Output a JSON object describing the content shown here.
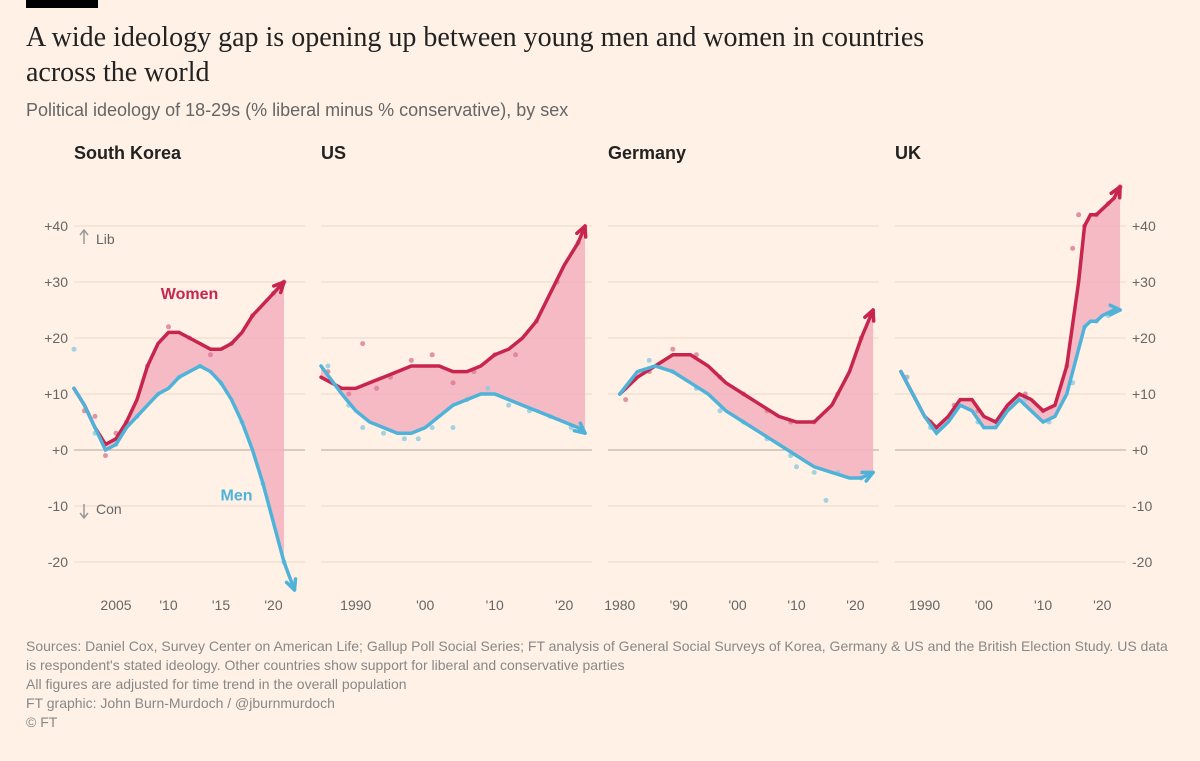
{
  "layout": {
    "background_color": "#fff1e5",
    "accent_bar_color": "#000000",
    "title_fontsize": 28,
    "subtitle_fontsize": 18,
    "chart_title_fontsize": 18,
    "axis_fontsize": 14,
    "footer_fontsize": 14
  },
  "title": "A wide ideology gap is opening up between young men and women in countries across the world",
  "subtitle": "Political ideology of 18-29s (% liberal minus % conservative), by sex",
  "series_labels": {
    "women": "Women",
    "men": "Men"
  },
  "annotations": {
    "lib": "Lib",
    "con": "Con"
  },
  "colors": {
    "women_line": "#c7254e",
    "women_fill": "#f4b0c0",
    "women_dot": "#d97a93",
    "men_line": "#4fb3d9",
    "men_dot": "#8fcbe0",
    "gridline": "#e7d9cb",
    "zeroline": "#b3a799",
    "axis_text": "#666666",
    "title_text": "#222222",
    "footer_text": "#888888",
    "arrow_annot": "#999999"
  },
  "yaxis": {
    "ylim": [
      -25,
      50
    ],
    "ticks": [
      -20,
      -10,
      0,
      10,
      20,
      30,
      40
    ],
    "tick_labels": [
      "-20",
      "-10",
      "+0",
      "+10",
      "+20",
      "+30",
      "+40"
    ]
  },
  "charts": [
    {
      "name": "South Korea",
      "x_start": 2001,
      "x_end": 2023,
      "x_ticks": [
        2005,
        2010,
        2015,
        2020
      ],
      "x_tick_labels": [
        "2005",
        "'10",
        "'15",
        "'20"
      ],
      "women_line": [
        [
          2001,
          11
        ],
        [
          2002,
          8
        ],
        [
          2003,
          4
        ],
        [
          2004,
          1
        ],
        [
          2005,
          2
        ],
        [
          2006,
          5
        ],
        [
          2007,
          9
        ],
        [
          2008,
          15
        ],
        [
          2009,
          19
        ],
        [
          2010,
          21
        ],
        [
          2011,
          21
        ],
        [
          2012,
          20
        ],
        [
          2013,
          19
        ],
        [
          2014,
          18
        ],
        [
          2015,
          18
        ],
        [
          2016,
          19
        ],
        [
          2017,
          21
        ],
        [
          2018,
          24
        ],
        [
          2019,
          26
        ],
        [
          2020,
          28
        ],
        [
          2021,
          30
        ]
      ],
      "men_line": [
        [
          2001,
          11
        ],
        [
          2002,
          8
        ],
        [
          2003,
          4
        ],
        [
          2004,
          0
        ],
        [
          2005,
          1
        ],
        [
          2006,
          4
        ],
        [
          2007,
          6
        ],
        [
          2008,
          8
        ],
        [
          2009,
          10
        ],
        [
          2010,
          11
        ],
        [
          2011,
          13
        ],
        [
          2012,
          14
        ],
        [
          2013,
          15
        ],
        [
          2014,
          14
        ],
        [
          2015,
          12
        ],
        [
          2016,
          9
        ],
        [
          2017,
          5
        ],
        [
          2018,
          0
        ],
        [
          2019,
          -6
        ],
        [
          2020,
          -13
        ],
        [
          2021,
          -20
        ],
        [
          2022,
          -25
        ]
      ],
      "women_dots": [
        [
          2002,
          7
        ],
        [
          2003,
          6
        ],
        [
          2004,
          -1
        ],
        [
          2005,
          3
        ],
        [
          2006,
          5
        ],
        [
          2008,
          15
        ],
        [
          2010,
          22
        ],
        [
          2012,
          20
        ],
        [
          2014,
          17
        ],
        [
          2016,
          19
        ],
        [
          2018,
          24
        ],
        [
          2020,
          28
        ],
        [
          2021,
          30
        ]
      ],
      "men_dots": [
        [
          2001,
          18
        ],
        [
          2003,
          3
        ],
        [
          2005,
          1
        ],
        [
          2007,
          6
        ],
        [
          2009,
          10
        ],
        [
          2011,
          13
        ],
        [
          2013,
          15
        ],
        [
          2015,
          12
        ],
        [
          2017,
          5
        ],
        [
          2019,
          -6
        ],
        [
          2021,
          -20
        ]
      ]
    },
    {
      "name": "US",
      "x_start": 1985,
      "x_end": 2024,
      "x_ticks": [
        1990,
        2000,
        2010,
        2020
      ],
      "x_tick_labels": [
        "1990",
        "'00",
        "'10",
        "'20"
      ],
      "women_line": [
        [
          1985,
          13
        ],
        [
          1988,
          11
        ],
        [
          1990,
          11
        ],
        [
          1992,
          12
        ],
        [
          1994,
          13
        ],
        [
          1996,
          14
        ],
        [
          1998,
          15
        ],
        [
          2000,
          15
        ],
        [
          2002,
          15
        ],
        [
          2004,
          14
        ],
        [
          2006,
          14
        ],
        [
          2008,
          15
        ],
        [
          2010,
          17
        ],
        [
          2012,
          18
        ],
        [
          2014,
          20
        ],
        [
          2016,
          23
        ],
        [
          2018,
          28
        ],
        [
          2020,
          33
        ],
        [
          2022,
          37
        ],
        [
          2023,
          40
        ]
      ],
      "men_line": [
        [
          1985,
          15
        ],
        [
          1988,
          10
        ],
        [
          1990,
          7
        ],
        [
          1992,
          5
        ],
        [
          1994,
          4
        ],
        [
          1996,
          3
        ],
        [
          1998,
          3
        ],
        [
          2000,
          4
        ],
        [
          2002,
          6
        ],
        [
          2004,
          8
        ],
        [
          2006,
          9
        ],
        [
          2008,
          10
        ],
        [
          2010,
          10
        ],
        [
          2012,
          9
        ],
        [
          2014,
          8
        ],
        [
          2016,
          7
        ],
        [
          2018,
          6
        ],
        [
          2020,
          5
        ],
        [
          2022,
          4
        ],
        [
          2023,
          3
        ]
      ],
      "women_dots": [
        [
          1986,
          14
        ],
        [
          1989,
          10
        ],
        [
          1991,
          19
        ],
        [
          1993,
          11
        ],
        [
          1995,
          13
        ],
        [
          1998,
          16
        ],
        [
          2001,
          17
        ],
        [
          2004,
          12
        ],
        [
          2007,
          14
        ],
        [
          2010,
          17
        ],
        [
          2013,
          17
        ],
        [
          2016,
          23
        ],
        [
          2019,
          30
        ],
        [
          2022,
          37
        ]
      ],
      "men_dots": [
        [
          1986,
          15
        ],
        [
          1989,
          8
        ],
        [
          1991,
          4
        ],
        [
          1994,
          3
        ],
        [
          1997,
          2
        ],
        [
          1999,
          2
        ],
        [
          2001,
          4
        ],
        [
          2004,
          4
        ],
        [
          2006,
          9
        ],
        [
          2009,
          11
        ],
        [
          2012,
          8
        ],
        [
          2015,
          7
        ],
        [
          2018,
          6
        ],
        [
          2021,
          4
        ]
      ]
    },
    {
      "name": "Germany",
      "x_start": 1978,
      "x_end": 2024,
      "x_ticks": [
        1980,
        1990,
        2000,
        2010,
        2020
      ],
      "x_tick_labels": [
        "1980",
        "'90",
        "'00",
        "'10",
        "'20"
      ],
      "women_line": [
        [
          1980,
          10
        ],
        [
          1983,
          13
        ],
        [
          1986,
          15
        ],
        [
          1989,
          17
        ],
        [
          1992,
          17
        ],
        [
          1995,
          15
        ],
        [
          1998,
          12
        ],
        [
          2001,
          10
        ],
        [
          2004,
          8
        ],
        [
          2007,
          6
        ],
        [
          2010,
          5
        ],
        [
          2013,
          5
        ],
        [
          2016,
          8
        ],
        [
          2019,
          14
        ],
        [
          2021,
          20
        ],
        [
          2023,
          25
        ]
      ],
      "men_line": [
        [
          1980,
          10
        ],
        [
          1983,
          14
        ],
        [
          1986,
          15
        ],
        [
          1989,
          14
        ],
        [
          1992,
          12
        ],
        [
          1995,
          10
        ],
        [
          1998,
          7
        ],
        [
          2001,
          5
        ],
        [
          2004,
          3
        ],
        [
          2007,
          1
        ],
        [
          2010,
          -1
        ],
        [
          2013,
          -3
        ],
        [
          2016,
          -4
        ],
        [
          2019,
          -5
        ],
        [
          2021,
          -5
        ],
        [
          2023,
          -4
        ]
      ],
      "women_dots": [
        [
          1981,
          9
        ],
        [
          1985,
          14
        ],
        [
          1989,
          18
        ],
        [
          1993,
          17
        ],
        [
          1997,
          13
        ],
        [
          2001,
          10
        ],
        [
          2005,
          7
        ],
        [
          2009,
          5
        ],
        [
          2013,
          5
        ],
        [
          2017,
          10
        ],
        [
          2021,
          20
        ]
      ],
      "men_dots": [
        [
          1981,
          11
        ],
        [
          1985,
          16
        ],
        [
          1989,
          14
        ],
        [
          1993,
          11
        ],
        [
          1997,
          7
        ],
        [
          2001,
          5
        ],
        [
          2005,
          2
        ],
        [
          2009,
          -1
        ],
        [
          2010,
          -3
        ],
        [
          2013,
          -4
        ],
        [
          2015,
          -9
        ],
        [
          2017,
          -4
        ],
        [
          2021,
          -5
        ]
      ]
    },
    {
      "name": "UK",
      "x_start": 1985,
      "x_end": 2024,
      "x_ticks": [
        1990,
        2000,
        2010,
        2020
      ],
      "x_tick_labels": [
        "1990",
        "'00",
        "'10",
        "'20"
      ],
      "women_line": [
        [
          1986,
          14
        ],
        [
          1988,
          10
        ],
        [
          1990,
          6
        ],
        [
          1992,
          4
        ],
        [
          1994,
          6
        ],
        [
          1996,
          9
        ],
        [
          1998,
          9
        ],
        [
          2000,
          6
        ],
        [
          2002,
          5
        ],
        [
          2004,
          8
        ],
        [
          2006,
          10
        ],
        [
          2008,
          9
        ],
        [
          2010,
          7
        ],
        [
          2012,
          8
        ],
        [
          2014,
          15
        ],
        [
          2016,
          30
        ],
        [
          2017,
          40
        ],
        [
          2018,
          42
        ],
        [
          2019,
          42
        ],
        [
          2020,
          43
        ],
        [
          2022,
          45
        ],
        [
          2023,
          47
        ]
      ],
      "men_line": [
        [
          1986,
          14
        ],
        [
          1988,
          10
        ],
        [
          1990,
          6
        ],
        [
          1992,
          3
        ],
        [
          1994,
          5
        ],
        [
          1996,
          8
        ],
        [
          1998,
          7
        ],
        [
          2000,
          4
        ],
        [
          2002,
          4
        ],
        [
          2004,
          7
        ],
        [
          2006,
          9
        ],
        [
          2008,
          7
        ],
        [
          2010,
          5
        ],
        [
          2012,
          6
        ],
        [
          2014,
          10
        ],
        [
          2016,
          18
        ],
        [
          2017,
          22
        ],
        [
          2018,
          23
        ],
        [
          2019,
          23
        ],
        [
          2020,
          24
        ],
        [
          2022,
          25
        ],
        [
          2023,
          25
        ]
      ],
      "women_dots": [
        [
          1987,
          13
        ],
        [
          1991,
          5
        ],
        [
          1995,
          8
        ],
        [
          1999,
          7
        ],
        [
          2003,
          6
        ],
        [
          2007,
          10
        ],
        [
          2010,
          7
        ],
        [
          2014,
          15
        ],
        [
          2015,
          36
        ],
        [
          2016,
          42
        ],
        [
          2017,
          40
        ],
        [
          2019,
          42
        ],
        [
          2021,
          44
        ],
        [
          2023,
          47
        ]
      ],
      "men_dots": [
        [
          1987,
          13
        ],
        [
          1991,
          4
        ],
        [
          1995,
          7
        ],
        [
          1999,
          5
        ],
        [
          2003,
          6
        ],
        [
          2007,
          9
        ],
        [
          2011,
          5
        ],
        [
          2015,
          12
        ],
        [
          2017,
          22
        ],
        [
          2019,
          23
        ],
        [
          2021,
          24
        ]
      ]
    }
  ],
  "footer": {
    "line1": "Sources: Daniel Cox, Survey Center on American Life; Gallup Poll Social Series; FT analysis of General Social Surveys of Korea, Germany & US and the British Election Study. US data is respondent's stated ideology. Other countries show support for liberal and conservative parties",
    "line2": "All figures are adjusted for time trend in the overall population",
    "line3": "FT graphic: John Burn-Murdoch / @jburnmurdoch",
    "line4": "© FT"
  }
}
